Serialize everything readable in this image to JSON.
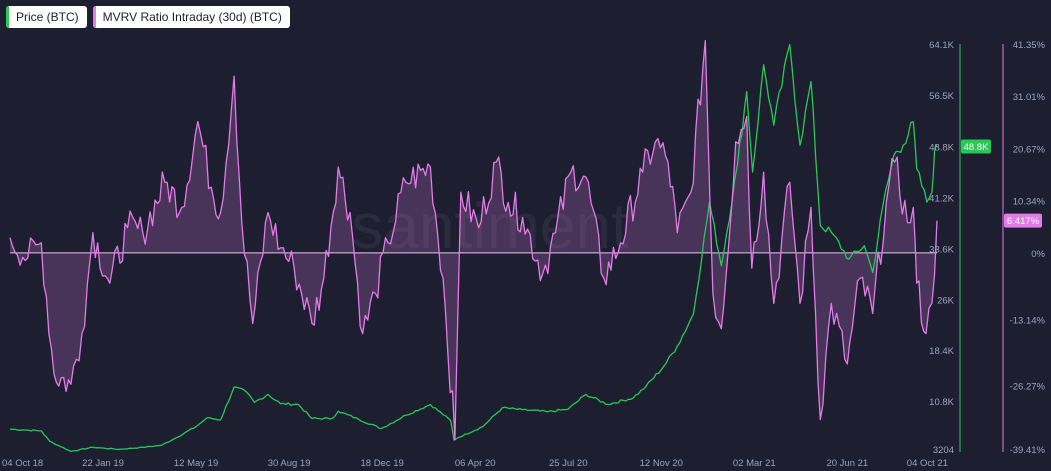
{
  "legend": [
    {
      "label": "Price (BTC)",
      "color": "#26c953"
    },
    {
      "label": "MVRV Ratio Intraday (30d) (BTC)",
      "color": "#e27be8"
    }
  ],
  "watermark": "santiment",
  "chart_data": {
    "type": "line",
    "x_ticks": [
      "04 Oct 18",
      "22 Jan 19",
      "12 May 19",
      "30 Aug 19",
      "18 Dec 19",
      "06 Apr 20",
      "25 Jul 20",
      "12 Nov 20",
      "02 Mar 21",
      "20 Jun 21",
      "04 Oct 21"
    ],
    "xlim": [
      "04 Oct 18",
      "04 Oct 21"
    ],
    "axes": {
      "price": {
        "ticks": [
          "64.1K",
          "56.5K",
          "48.8K",
          "41.2K",
          "33.6K",
          "26K",
          "18.4K",
          "10.8K",
          "3204"
        ],
        "ylim": [
          3204,
          64100
        ]
      },
      "mvrv": {
        "ticks": [
          "41.35%",
          "31.01%",
          "20.67%",
          "10.34%",
          "0%",
          "-13.14%",
          "-26.27%",
          "-39.41%"
        ],
        "ylim": [
          -39.41,
          41.35
        ]
      }
    },
    "current_value_labels": {
      "price": "48.8K",
      "mvrv": "6.417%"
    },
    "series": [
      {
        "name": "Price (BTC)",
        "color": "#26c953",
        "axis": "price",
        "points": [
          [
            "2018-10-04",
            6600
          ],
          [
            "2018-10-20",
            6500
          ],
          [
            "2018-11-10",
            6350
          ],
          [
            "2018-11-20",
            4800
          ],
          [
            "2018-12-15",
            3300
          ],
          [
            "2019-01-10",
            3900
          ],
          [
            "2019-02-10",
            3600
          ],
          [
            "2019-03-10",
            3900
          ],
          [
            "2019-04-01",
            4200
          ],
          [
            "2019-04-15",
            5100
          ],
          [
            "2019-05-12",
            7000
          ],
          [
            "2019-05-25",
            8300
          ],
          [
            "2019-06-10",
            8000
          ],
          [
            "2019-06-26",
            12900
          ],
          [
            "2019-07-10",
            12200
          ],
          [
            "2019-07-20",
            10600
          ],
          [
            "2019-08-05",
            11800
          ],
          [
            "2019-08-20",
            10400
          ],
          [
            "2019-09-10",
            10300
          ],
          [
            "2019-09-26",
            8200
          ],
          [
            "2019-10-20",
            8200
          ],
          [
            "2019-10-27",
            9300
          ],
          [
            "2019-11-20",
            8100
          ],
          [
            "2019-12-17",
            6700
          ],
          [
            "2020-01-15",
            8700
          ],
          [
            "2020-02-13",
            10300
          ],
          [
            "2020-03-08",
            7900
          ],
          [
            "2020-03-12",
            5000
          ],
          [
            "2020-03-16",
            5300
          ],
          [
            "2020-04-15",
            7000
          ],
          [
            "2020-05-08",
            9800
          ],
          [
            "2020-06-01",
            9500
          ],
          [
            "2020-07-01",
            9200
          ],
          [
            "2020-07-25",
            9600
          ],
          [
            "2020-08-15",
            11800
          ],
          [
            "2020-09-10",
            10300
          ],
          [
            "2020-10-10",
            11300
          ],
          [
            "2020-10-25",
            13000
          ],
          [
            "2020-11-15",
            16000
          ],
          [
            "2020-12-01",
            19000
          ],
          [
            "2020-12-20",
            23800
          ],
          [
            "2021-01-08",
            40500
          ],
          [
            "2021-01-22",
            31000
          ],
          [
            "2021-02-10",
            46000
          ],
          [
            "2021-02-21",
            57000
          ],
          [
            "2021-02-28",
            45000
          ],
          [
            "2021-03-13",
            61000
          ],
          [
            "2021-03-25",
            52000
          ],
          [
            "2021-04-13",
            64000
          ],
          [
            "2021-04-25",
            49000
          ],
          [
            "2021-05-08",
            58500
          ],
          [
            "2021-05-19",
            37000
          ],
          [
            "2021-06-01",
            36000
          ],
          [
            "2021-06-22",
            32000
          ],
          [
            "2021-07-10",
            34000
          ],
          [
            "2021-07-20",
            30000
          ],
          [
            "2021-08-01",
            40000
          ],
          [
            "2021-08-14",
            47500
          ],
          [
            "2021-08-25",
            49000
          ],
          [
            "2021-09-06",
            52500
          ],
          [
            "2021-09-10",
            45500
          ],
          [
            "2021-09-22",
            40500
          ],
          [
            "2021-09-28",
            42000
          ],
          [
            "2021-10-01",
            48000
          ],
          [
            "2021-10-04",
            48800
          ]
        ]
      },
      {
        "name": "MVRV Ratio Intraday (30d) (BTC)",
        "color": "#e27be8",
        "axis": "mvrv",
        "points": [
          [
            "2018-10-04",
            3
          ],
          [
            "2018-10-25",
            -1
          ],
          [
            "2018-11-10",
            2
          ],
          [
            "2018-11-25",
            -24
          ],
          [
            "2018-12-15",
            -26
          ],
          [
            "2018-12-28",
            -16
          ],
          [
            "2019-01-10",
            4
          ],
          [
            "2019-01-30",
            -6
          ],
          [
            "2019-02-20",
            5
          ],
          [
            "2019-03-10",
            4
          ],
          [
            "2019-04-05",
            14
          ],
          [
            "2019-04-25",
            9
          ],
          [
            "2019-05-14",
            26
          ],
          [
            "2019-05-30",
            13
          ],
          [
            "2019-06-10",
            8
          ],
          [
            "2019-06-26",
            35
          ],
          [
            "2019-07-05",
            6
          ],
          [
            "2019-07-18",
            -14
          ],
          [
            "2019-08-05",
            8
          ],
          [
            "2019-08-20",
            1
          ],
          [
            "2019-09-05",
            -3
          ],
          [
            "2019-09-26",
            -14
          ],
          [
            "2019-10-10",
            -5
          ],
          [
            "2019-10-27",
            17
          ],
          [
            "2019-11-10",
            8
          ],
          [
            "2019-11-25",
            -16
          ],
          [
            "2019-12-10",
            -8
          ],
          [
            "2019-12-25",
            2
          ],
          [
            "2020-01-15",
            14
          ],
          [
            "2020-02-13",
            17
          ],
          [
            "2020-02-28",
            -5
          ],
          [
            "2020-03-13",
            -37
          ],
          [
            "2020-03-20",
            12
          ],
          [
            "2020-04-10",
            5
          ],
          [
            "2020-05-01",
            18
          ],
          [
            "2020-05-15",
            10
          ],
          [
            "2020-06-01",
            7
          ],
          [
            "2020-06-25",
            -4
          ],
          [
            "2020-07-10",
            4
          ],
          [
            "2020-07-28",
            16
          ],
          [
            "2020-08-15",
            15
          ],
          [
            "2020-09-05",
            -5
          ],
          [
            "2020-09-25",
            2
          ],
          [
            "2020-10-21",
            16
          ],
          [
            "2020-11-05",
            22
          ],
          [
            "2020-11-20",
            18
          ],
          [
            "2020-12-01",
            4
          ],
          [
            "2020-12-17",
            12
          ],
          [
            "2021-01-03",
            42
          ],
          [
            "2021-01-12",
            -8
          ],
          [
            "2021-01-22",
            -15
          ],
          [
            "2021-02-08",
            22
          ],
          [
            "2021-02-21",
            27
          ],
          [
            "2021-02-27",
            -3
          ],
          [
            "2021-03-13",
            16
          ],
          [
            "2021-03-25",
            -10
          ],
          [
            "2021-04-13",
            14
          ],
          [
            "2021-04-25",
            -10
          ],
          [
            "2021-05-08",
            9
          ],
          [
            "2021-05-19",
            -33
          ],
          [
            "2021-06-01",
            -10
          ],
          [
            "2021-06-20",
            -22
          ],
          [
            "2021-07-05",
            -5
          ],
          [
            "2021-07-20",
            -12
          ],
          [
            "2021-08-05",
            10
          ],
          [
            "2021-08-15",
            18
          ],
          [
            "2021-08-30",
            6
          ],
          [
            "2021-09-06",
            9
          ],
          [
            "2021-09-10",
            -6
          ],
          [
            "2021-09-21",
            -16
          ],
          [
            "2021-09-28",
            -10
          ],
          [
            "2021-10-04",
            6.4
          ]
        ]
      }
    ],
    "grid": false,
    "legend_position": "top-left"
  }
}
